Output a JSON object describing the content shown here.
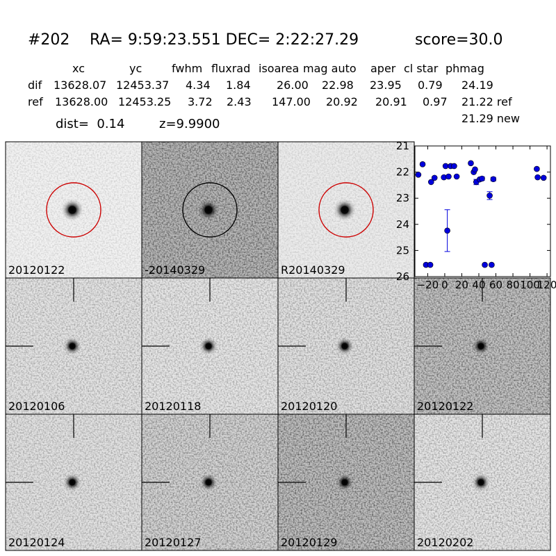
{
  "header": {
    "id": "#202",
    "coords": "RA= 9:59:23.551 DEC= 2:22:27.29",
    "score": "score=30.0"
  },
  "table": {
    "columns": [
      "xc",
      "yc",
      "fwhm",
      "fluxrad",
      "isoarea",
      "mag auto",
      "aper",
      "cl star",
      "phmag"
    ],
    "rows": [
      [
        "dif",
        "13628.07",
        "12453.37",
        "4.34",
        "1.84",
        "26.00",
        "22.98",
        "23.95",
        "0.79",
        "24.19"
      ],
      [
        "ref",
        "13628.00",
        "12453.25",
        "3.72",
        "2.43",
        "147.00",
        "20.92",
        "20.91",
        "0.97",
        "21.22 ref"
      ]
    ],
    "note": "21.29 new"
  },
  "dist": "dist=  0.14",
  "z": "z=9.9900",
  "panels": [
    {
      "label": "20120122",
      "circle": "#cc0000"
    },
    {
      "label": "-20140329",
      "circle": "#000000"
    },
    {
      "label": "R20140329",
      "circle": "#cc0000"
    },
    {
      "label": "20120106"
    },
    {
      "label": "20120118"
    },
    {
      "label": "20120120"
    },
    {
      "label": "20120122",
      "label_color": "#ff0000"
    },
    {
      "label": "20120124"
    },
    {
      "label": "20120127"
    },
    {
      "label": "20120129"
    },
    {
      "label": "20120202"
    }
  ],
  "chart_data": {
    "type": "scatter",
    "xlim": [
      -35,
      124
    ],
    "xticks": [
      {
        "value": -20,
        "label": "−20"
      },
      0,
      20,
      40,
      60,
      80,
      100,
      120
    ],
    "ylim": [
      26,
      21
    ],
    "yticks": [
      21,
      22,
      23,
      24,
      25,
      26
    ],
    "series": [
      {
        "color": "#0000dd",
        "x": [
          -31,
          -26,
          -22,
          -17,
          -16,
          -12,
          -1,
          1,
          3,
          4.5,
          7,
          11,
          14,
          30.6,
          34,
          35.5,
          37,
          41,
          43.7,
          47,
          52.7,
          55,
          57,
          108,
          109,
          116
        ],
        "values": [
          22.1,
          21.7,
          25.55,
          25.55,
          22.38,
          22.22,
          22.2,
          21.77,
          24.24,
          22.17,
          21.77,
          21.77,
          22.17,
          21.66,
          22.0,
          21.9,
          22.38,
          22.28,
          22.25,
          25.55,
          22.9,
          25.55,
          22.27,
          21.88,
          22.2,
          22.22
        ],
        "errors": [
          null,
          null,
          null,
          null,
          null,
          null,
          null,
          null,
          0.8,
          null,
          null,
          null,
          null,
          null,
          null,
          null,
          0.1,
          null,
          0.07,
          null,
          0.15,
          null,
          0.07,
          null,
          null,
          null
        ]
      }
    ]
  }
}
